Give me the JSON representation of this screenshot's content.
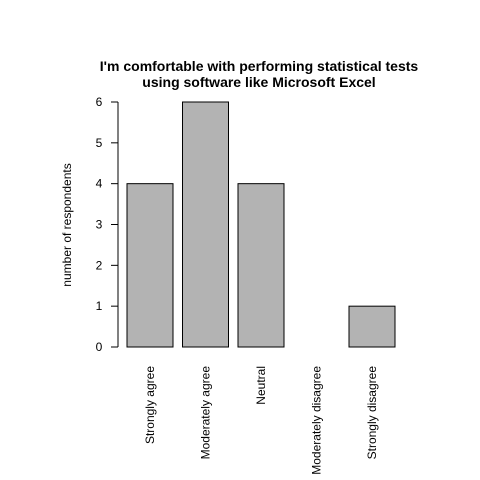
{
  "chart_data": {
    "type": "bar",
    "title_lines": [
      "I'm comfortable with performing statistical tests",
      "using software like Microsoft Excel"
    ],
    "ylabel": "number of respondents",
    "categories": [
      "Strongly agree",
      "Moderately agree",
      "Neutral",
      "Moderately disagree",
      "Strongly disagree"
    ],
    "values": [
      4,
      6,
      4,
      0,
      1
    ],
    "ylim": [
      0,
      6
    ],
    "yticks": [
      0,
      1,
      2,
      3,
      4,
      5,
      6
    ],
    "bar_color": "#b3b3b3",
    "bar_border_color": "#000000",
    "grid": false,
    "legend": "none"
  }
}
